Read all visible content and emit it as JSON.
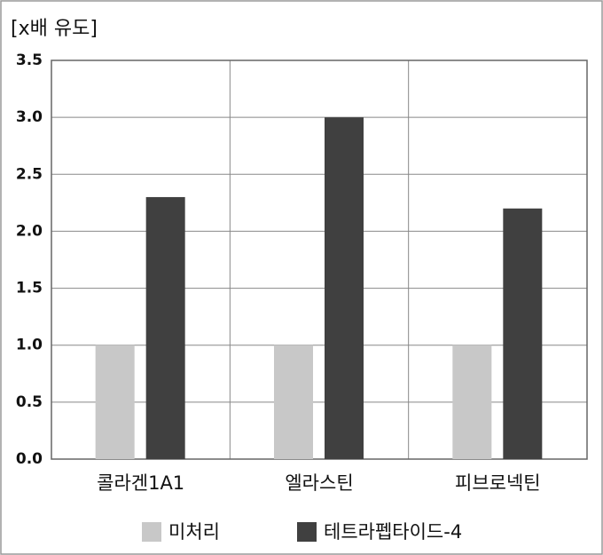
{
  "chart_data": {
    "type": "bar",
    "y_label": "[x배 유도]",
    "categories": [
      "콜라겐1A1",
      "엘라스틴",
      "피브로넥틴"
    ],
    "series": [
      {
        "name": "미처리",
        "color": "#c8c8c8",
        "values": [
          1.0,
          1.0,
          1.0
        ]
      },
      {
        "name": "테트라펩타이드-4",
        "color": "#404040",
        "values": [
          2.3,
          3.0,
          2.2
        ]
      }
    ],
    "ylim": [
      0,
      3.5
    ],
    "yticks": [
      {
        "value": 0,
        "label": "0.0"
      },
      0.5,
      {
        "value": 1,
        "label": "1.0"
      },
      1.5,
      {
        "value": 2,
        "label": "2.0"
      },
      2.5,
      {
        "value": 3,
        "label": "3.0"
      },
      3.5
    ],
    "grid": true
  }
}
